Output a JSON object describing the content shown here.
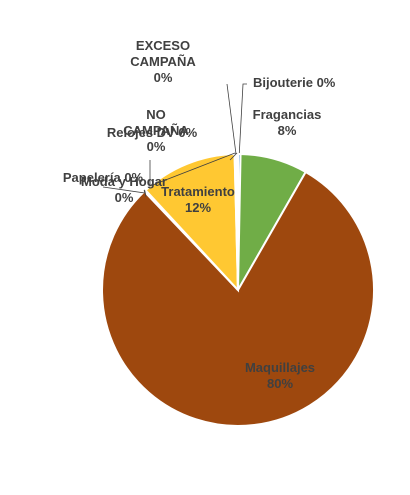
{
  "chart_data": {
    "type": "pie",
    "title": "",
    "slices": [
      {
        "label": "Bijouterie",
        "value": 0.3,
        "pct_label": "0%",
        "color": "#5b9bd5"
      },
      {
        "label": "Fragancias",
        "value": 8,
        "pct_label": "8%",
        "color": "#70ad47"
      },
      {
        "label": "Maquillajes",
        "value": 79.7,
        "pct_label": "80%",
        "color": "#9e480e"
      },
      {
        "label": "Papelería",
        "value": 0.1,
        "pct_label": "0%",
        "color": "#264478"
      },
      {
        "label": "Moda y Hogar",
        "value": 0.1,
        "pct_label": "0%",
        "color": "#997300"
      },
      {
        "label": "Tratamiento",
        "value": 11.5,
        "pct_label": "12%",
        "color": "#ffc832"
      },
      {
        "label": "Relojes DV",
        "value": 0.1,
        "pct_label": "0%",
        "color": "#636363"
      },
      {
        "label": "NO CAMPAÑA",
        "value": 0.1,
        "pct_label": "0%",
        "color": "#43682b"
      },
      {
        "label": "EXCESO CAMPAÑA",
        "value": 0.2,
        "pct_label": "0%",
        "color": "#a5a5a5"
      }
    ],
    "legend": "none",
    "data_labels": "category-and-percent"
  }
}
